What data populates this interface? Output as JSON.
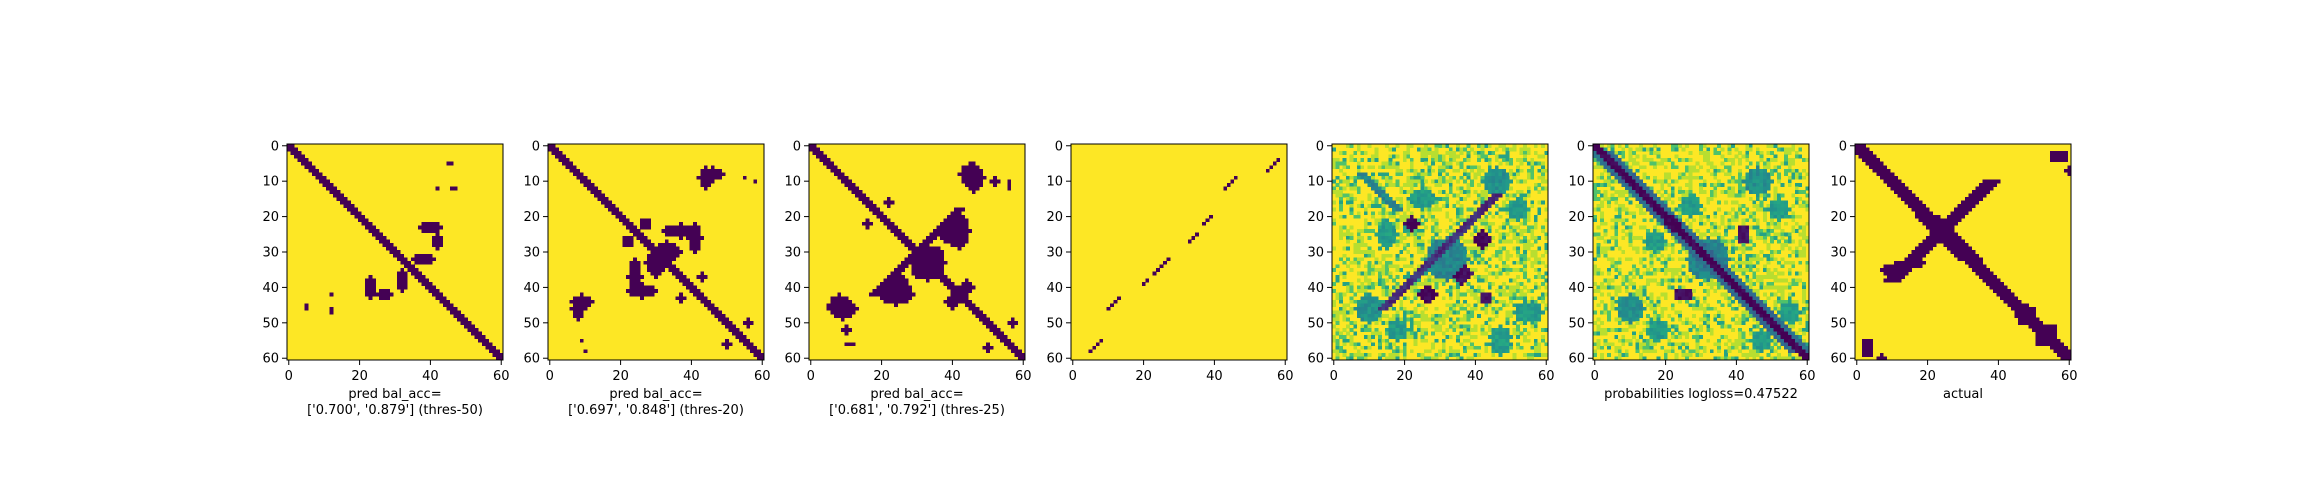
{
  "colors": {
    "background": "#440154",
    "foreground": "#fde725",
    "colormap": "viridis"
  },
  "chart_data": [
    {
      "type": "heatmap",
      "id": "p1",
      "xlabel": [
        "pred bal_acc=",
        "['0.700', '0.879'] (thres-50)"
      ],
      "xticks": [
        0,
        20,
        40,
        60
      ],
      "yticks": [
        0,
        10,
        20,
        30,
        40,
        50,
        60
      ],
      "xlim": [
        0,
        60
      ],
      "ylim": [
        60,
        0
      ],
      "grid": false,
      "features": [
        {
          "kind": "diag",
          "off": 0,
          "w": 1.6,
          "from": 0,
          "to": 60,
          "v": 0
        },
        {
          "kind": "blob",
          "x": 40,
          "y": 23,
          "rx": 3.5,
          "ry": 1.6,
          "v": 0
        },
        {
          "kind": "blob",
          "x": 32,
          "y": 38,
          "rx": 1.6,
          "ry": 3.5,
          "v": 0
        },
        {
          "kind": "blob",
          "x": 27,
          "y": 42,
          "rx": 2,
          "ry": 1.6,
          "v": 0
        },
        {
          "kind": "blob",
          "x": 46,
          "y": 5,
          "rx": 0.6,
          "ry": 0.6,
          "v": 0
        },
        {
          "kind": "blob",
          "x": 42,
          "y": 12,
          "rx": 0.6,
          "ry": 0.6,
          "v": 0
        },
        {
          "kind": "blob",
          "x": 47,
          "y": 12,
          "rx": 0.6,
          "ry": 0.6,
          "v": 0
        },
        {
          "kind": "blob",
          "x": 5,
          "y": 45,
          "rx": 0.6,
          "ry": 0.6,
          "v": 0
        },
        {
          "kind": "blob",
          "x": 12,
          "y": 46,
          "rx": 0.6,
          "ry": 0.6,
          "v": 0
        }
      ]
    },
    {
      "type": "heatmap",
      "id": "p2",
      "xlabel": [
        "pred bal_acc=",
        "['0.697', '0.848'] (thres-20)"
      ],
      "xticks": [
        0,
        20,
        40,
        60
      ],
      "yticks": [
        0,
        10,
        20,
        30,
        40,
        50,
        60
      ],
      "xlim": [
        0,
        60
      ],
      "ylim": [
        60,
        0
      ],
      "grid": false,
      "features": [
        {
          "kind": "diag",
          "off": 0,
          "w": 1.6,
          "from": 0,
          "to": 60,
          "v": 0
        },
        {
          "kind": "blob",
          "x": 37,
          "y": 24,
          "rx": 5,
          "ry": 2,
          "v": 0
        },
        {
          "kind": "blob",
          "x": 30,
          "y": 33,
          "rx": 3,
          "ry": 4,
          "v": 0
        },
        {
          "kind": "blob",
          "x": 26,
          "y": 41,
          "rx": 4,
          "ry": 2,
          "v": 0
        },
        {
          "kind": "blob",
          "x": 44,
          "y": 9,
          "rx": 2,
          "ry": 3,
          "v": 0
        },
        {
          "kind": "blob",
          "x": 8,
          "y": 46,
          "rx": 2,
          "ry": 3,
          "v": 0
        },
        {
          "kind": "blob",
          "x": 22,
          "y": 27,
          "rx": 1.5,
          "ry": 1.5,
          "v": 0
        },
        {
          "kind": "blob",
          "x": 56,
          "y": 50,
          "rx": 1,
          "ry": 1,
          "v": 0
        },
        {
          "kind": "blob",
          "x": 55,
          "y": 9,
          "rx": 0.6,
          "ry": 0.6,
          "v": 0
        },
        {
          "kind": "blob",
          "x": 43,
          "y": 37,
          "rx": 1,
          "ry": 1,
          "v": 0
        },
        {
          "kind": "blob",
          "x": 10,
          "y": 58,
          "rx": 0.8,
          "ry": 0.8,
          "v": 0
        }
      ]
    },
    {
      "type": "heatmap",
      "id": "p3",
      "xlabel": [
        "pred bal_acc=",
        "['0.681', '0.792'] (thres-25)"
      ],
      "xticks": [
        0,
        20,
        40,
        60
      ],
      "yticks": [
        0,
        10,
        20,
        30,
        40,
        50,
        60
      ],
      "xlim": [
        0,
        60
      ],
      "ylim": [
        60,
        0
      ],
      "grid": false,
      "features": [
        {
          "kind": "diag",
          "off": 0,
          "w": 1.7,
          "from": 0,
          "to": 60,
          "v": 0
        },
        {
          "kind": "diag",
          "off": 60,
          "w": 1.5,
          "from": 18,
          "to": 42,
          "v": 0,
          "anti": true
        },
        {
          "kind": "blob",
          "x": 33,
          "y": 33,
          "rx": 5,
          "ry": 5,
          "v": 0
        },
        {
          "kind": "blob",
          "x": 40,
          "y": 25,
          "rx": 4,
          "ry": 3,
          "v": 0
        },
        {
          "kind": "blob",
          "x": 24,
          "y": 42,
          "rx": 5,
          "ry": 3,
          "v": 0
        },
        {
          "kind": "blob",
          "x": 45,
          "y": 8,
          "rx": 3,
          "ry": 3,
          "v": 0
        },
        {
          "kind": "blob",
          "x": 9,
          "y": 46,
          "rx": 4,
          "ry": 3,
          "v": 0
        },
        {
          "kind": "blob",
          "x": 52,
          "y": 10,
          "rx": 1,
          "ry": 1.5,
          "v": 0
        },
        {
          "kind": "blob",
          "x": 16,
          "y": 22,
          "rx": 1.2,
          "ry": 1.2,
          "v": 0
        },
        {
          "kind": "blob",
          "x": 57,
          "y": 50,
          "rx": 1.5,
          "ry": 1,
          "v": 0
        },
        {
          "kind": "blob",
          "x": 11,
          "y": 56,
          "rx": 1,
          "ry": 0.8,
          "v": 0
        },
        {
          "kind": "blob",
          "x": 44,
          "y": 40,
          "rx": 2,
          "ry": 2,
          "v": 0
        }
      ]
    },
    {
      "type": "heatmap",
      "id": "p4",
      "xlabel": [],
      "xticks": [
        0,
        20,
        40,
        60
      ],
      "yticks": [
        0,
        10,
        20,
        30,
        40,
        50,
        60
      ],
      "xlim": [
        0,
        60
      ],
      "ylim": [
        60,
        0
      ],
      "grid": false,
      "features": [
        {
          "kind": "seg",
          "x0": 5,
          "y0": 58,
          "x1": 8,
          "y1": 55,
          "v": 0
        },
        {
          "kind": "seg",
          "x0": 10,
          "y0": 46,
          "x1": 13,
          "y1": 43,
          "v": 0
        },
        {
          "kind": "seg",
          "x0": 20,
          "y0": 39,
          "x1": 21,
          "y1": 38,
          "v": 0
        },
        {
          "kind": "seg",
          "x0": 23,
          "y0": 36,
          "x1": 27,
          "y1": 32,
          "v": 0
        },
        {
          "kind": "seg",
          "x0": 33,
          "y0": 27,
          "x1": 35,
          "y1": 25,
          "v": 0
        },
        {
          "kind": "seg",
          "x0": 37,
          "y0": 22,
          "x1": 39,
          "y1": 20,
          "v": 0
        },
        {
          "kind": "seg",
          "x0": 43,
          "y0": 12,
          "x1": 46,
          "y1": 9,
          "v": 0
        },
        {
          "kind": "seg",
          "x0": 55,
          "y0": 7,
          "x1": 58,
          "y1": 4,
          "v": 0
        }
      ]
    },
    {
      "type": "heatmap",
      "id": "p5",
      "continuous": true,
      "seed": 11,
      "xlabel": [],
      "xticks": [
        0,
        20,
        40,
        60
      ],
      "yticks": [
        0,
        10,
        20,
        30,
        40,
        50,
        60
      ],
      "xlim": [
        0,
        60
      ],
      "ylim": [
        60,
        0
      ],
      "grid": false,
      "features": [
        {
          "kind": "diag",
          "off": 60,
          "w": 1.2,
          "from": 14,
          "to": 46,
          "v": 0.15,
          "anti": true
        },
        {
          "kind": "diag",
          "off": 0,
          "w": 1.0,
          "from": 8,
          "to": 18,
          "v": 0.45
        },
        {
          "kind": "blob",
          "x": 22,
          "y": 22,
          "rx": 2.2,
          "ry": 2.2,
          "v": 0.0
        },
        {
          "kind": "blob",
          "x": 42,
          "y": 26,
          "rx": 2,
          "ry": 2,
          "v": 0.0
        },
        {
          "kind": "blob",
          "x": 27,
          "y": 42,
          "rx": 2,
          "ry": 2,
          "v": 0.0
        },
        {
          "kind": "blob",
          "x": 36,
          "y": 37,
          "rx": 2,
          "ry": 2,
          "v": 0.05
        },
        {
          "kind": "blob",
          "x": 43,
          "y": 43,
          "rx": 1.5,
          "ry": 1.5,
          "v": 0.05
        },
        {
          "kind": "blob",
          "x": 32,
          "y": 32,
          "rx": 6,
          "ry": 6,
          "v": 0.45
        },
        {
          "kind": "blob",
          "x": 46,
          "y": 10,
          "rx": 4,
          "ry": 4,
          "v": 0.5
        },
        {
          "kind": "blob",
          "x": 10,
          "y": 46,
          "rx": 4,
          "ry": 4,
          "v": 0.5
        },
        {
          "kind": "blob",
          "x": 15,
          "y": 25,
          "rx": 3,
          "ry": 4,
          "v": 0.55
        },
        {
          "kind": "blob",
          "x": 52,
          "y": 18,
          "rx": 3,
          "ry": 3,
          "v": 0.55
        },
        {
          "kind": "blob",
          "x": 56,
          "y": 47,
          "rx": 3,
          "ry": 3,
          "v": 0.55
        },
        {
          "kind": "blob",
          "x": 47,
          "y": 54,
          "rx": 3,
          "ry": 3,
          "v": 0.55
        }
      ]
    },
    {
      "type": "heatmap",
      "id": "p6",
      "continuous": true,
      "seed": 23,
      "xlabel": [
        "probabilities logloss=0.47522"
      ],
      "xticks": [
        0,
        20,
        40,
        60
      ],
      "yticks": [
        0,
        10,
        20,
        30,
        40,
        50,
        60
      ],
      "xlim": [
        0,
        60
      ],
      "ylim": [
        60,
        0
      ],
      "grid": false,
      "features": [
        {
          "kind": "diag",
          "off": 0,
          "w": 1.8,
          "from": 0,
          "to": 60,
          "v": 0.0
        },
        {
          "kind": "diag",
          "off": 0,
          "w": 3.6,
          "from": 2,
          "to": 58,
          "v": 0.35
        },
        {
          "kind": "blob",
          "x": 22,
          "y": 22,
          "rx": 2,
          "ry": 2,
          "v": 0.0
        },
        {
          "kind": "blob",
          "x": 42,
          "y": 26,
          "rx": 1.6,
          "ry": 1.6,
          "v": 0.05
        },
        {
          "kind": "blob",
          "x": 24,
          "y": 42,
          "rx": 1.8,
          "ry": 1.8,
          "v": 0.05
        },
        {
          "kind": "blob",
          "x": 32,
          "y": 32,
          "rx": 6,
          "ry": 6,
          "v": 0.45
        },
        {
          "kind": "blob",
          "x": 46,
          "y": 10,
          "rx": 4,
          "ry": 4,
          "v": 0.5
        },
        {
          "kind": "blob",
          "x": 10,
          "y": 46,
          "rx": 4,
          "ry": 4,
          "v": 0.5
        },
        {
          "kind": "blob",
          "x": 52,
          "y": 18,
          "rx": 3,
          "ry": 3,
          "v": 0.55
        },
        {
          "kind": "blob",
          "x": 17,
          "y": 27,
          "rx": 3,
          "ry": 3,
          "v": 0.55
        },
        {
          "kind": "blob",
          "x": 55,
          "y": 47,
          "rx": 3,
          "ry": 3,
          "v": 0.55
        }
      ]
    },
    {
      "type": "heatmap",
      "id": "p7",
      "xlabel": [
        "actual"
      ],
      "xticks": [
        0,
        20,
        40,
        60
      ],
      "yticks": [
        0,
        10,
        20,
        30,
        40,
        50,
        60
      ],
      "xlim": [
        0,
        60
      ],
      "ylim": [
        60,
        0
      ],
      "grid": false,
      "features": [
        {
          "kind": "diag",
          "off": 0,
          "w": 2.2,
          "from": 0,
          "to": 20,
          "v": 0
        },
        {
          "kind": "diag",
          "off": 0,
          "w": 3.5,
          "from": 20,
          "to": 32,
          "v": 0
        },
        {
          "kind": "diag",
          "off": 0,
          "w": 2.5,
          "from": 32,
          "to": 60,
          "v": 0
        },
        {
          "kind": "diag",
          "off": 48,
          "w": 2.5,
          "from": 10,
          "to": 38,
          "v": 0,
          "anti": true
        },
        {
          "kind": "seg",
          "x0": 8,
          "y0": 35,
          "x1": 18,
          "y1": 33,
          "v": 0,
          "w": 1.5
        },
        {
          "kind": "blob",
          "x": 58,
          "y": 3,
          "rx": 1.6,
          "ry": 1.6,
          "v": 0
        },
        {
          "kind": "blob",
          "x": 60,
          "y": 7,
          "rx": 1,
          "ry": 1,
          "v": 0
        },
        {
          "kind": "blob",
          "x": 3,
          "y": 57,
          "rx": 1.8,
          "ry": 2.5,
          "v": 0
        },
        {
          "kind": "blob",
          "x": 55,
          "y": 55,
          "rx": 2,
          "ry": 1.5,
          "v": 0
        },
        {
          "kind": "blob",
          "x": 47,
          "y": 48,
          "rx": 2,
          "ry": 2.5,
          "v": 0
        },
        {
          "kind": "blob",
          "x": 52,
          "y": 55,
          "rx": 1.5,
          "ry": 1.5,
          "v": 0
        }
      ]
    }
  ]
}
